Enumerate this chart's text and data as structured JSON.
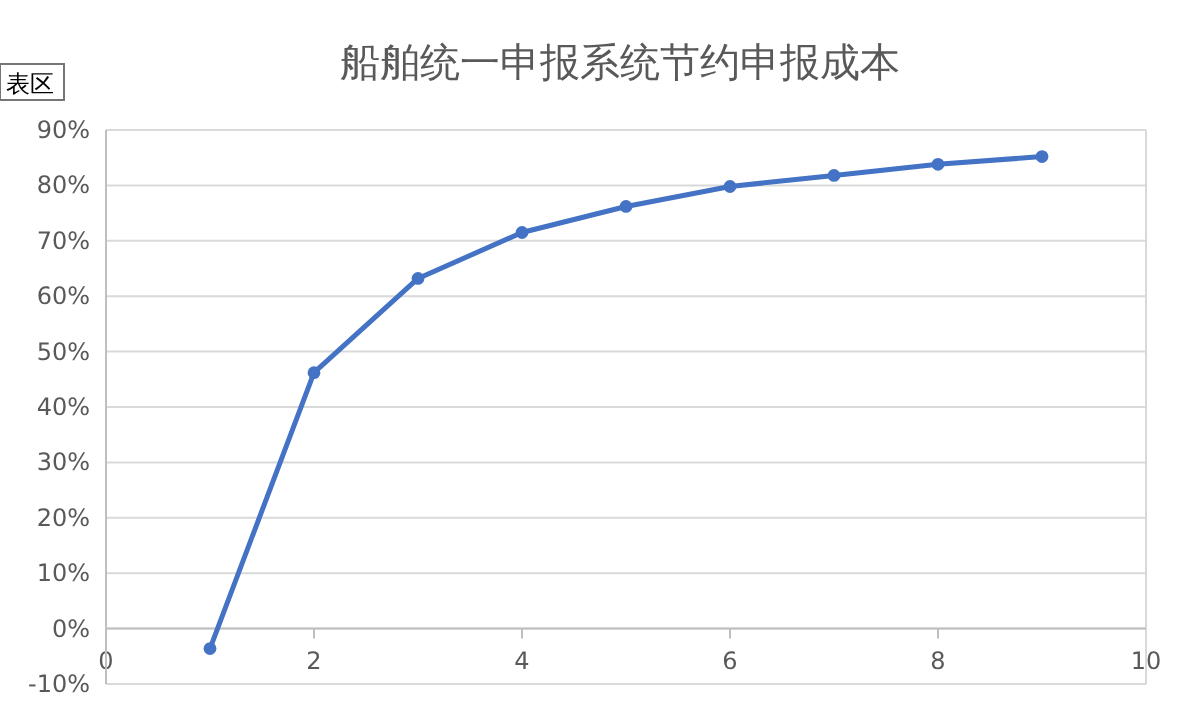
{
  "chart_data": {
    "type": "line",
    "title": "船舶统一申报系统节约申报成本",
    "x": [
      1,
      2,
      3,
      4,
      5,
      6,
      7,
      8,
      9
    ],
    "series": [
      {
        "color": "#4472c4",
        "values": [
          -3.6,
          46.2,
          63.2,
          71.5,
          76.2,
          79.8,
          81.8,
          83.8,
          85.2
        ]
      }
    ],
    "xlim": [
      0,
      10
    ],
    "xticks": [
      0,
      2,
      4,
      6,
      8,
      10
    ],
    "ylim": [
      -10,
      90
    ],
    "yticks": [
      {
        "value": -10,
        "label": "-10%"
      },
      {
        "value": 0,
        "label": "0%"
      },
      {
        "value": 10,
        "label": "10%"
      },
      {
        "value": 20,
        "label": "20%"
      },
      {
        "value": 30,
        "label": "30%"
      },
      {
        "value": 40,
        "label": "40%"
      },
      {
        "value": 50,
        "label": "50%"
      },
      {
        "value": 60,
        "label": "60%"
      },
      {
        "value": 70,
        "label": "70%"
      },
      {
        "value": 80,
        "label": "80%"
      },
      {
        "value": 90,
        "label": "90%"
      }
    ],
    "grid": "y",
    "marker": "circle",
    "line_style": "solid",
    "annotations": [
      "表区"
    ]
  }
}
